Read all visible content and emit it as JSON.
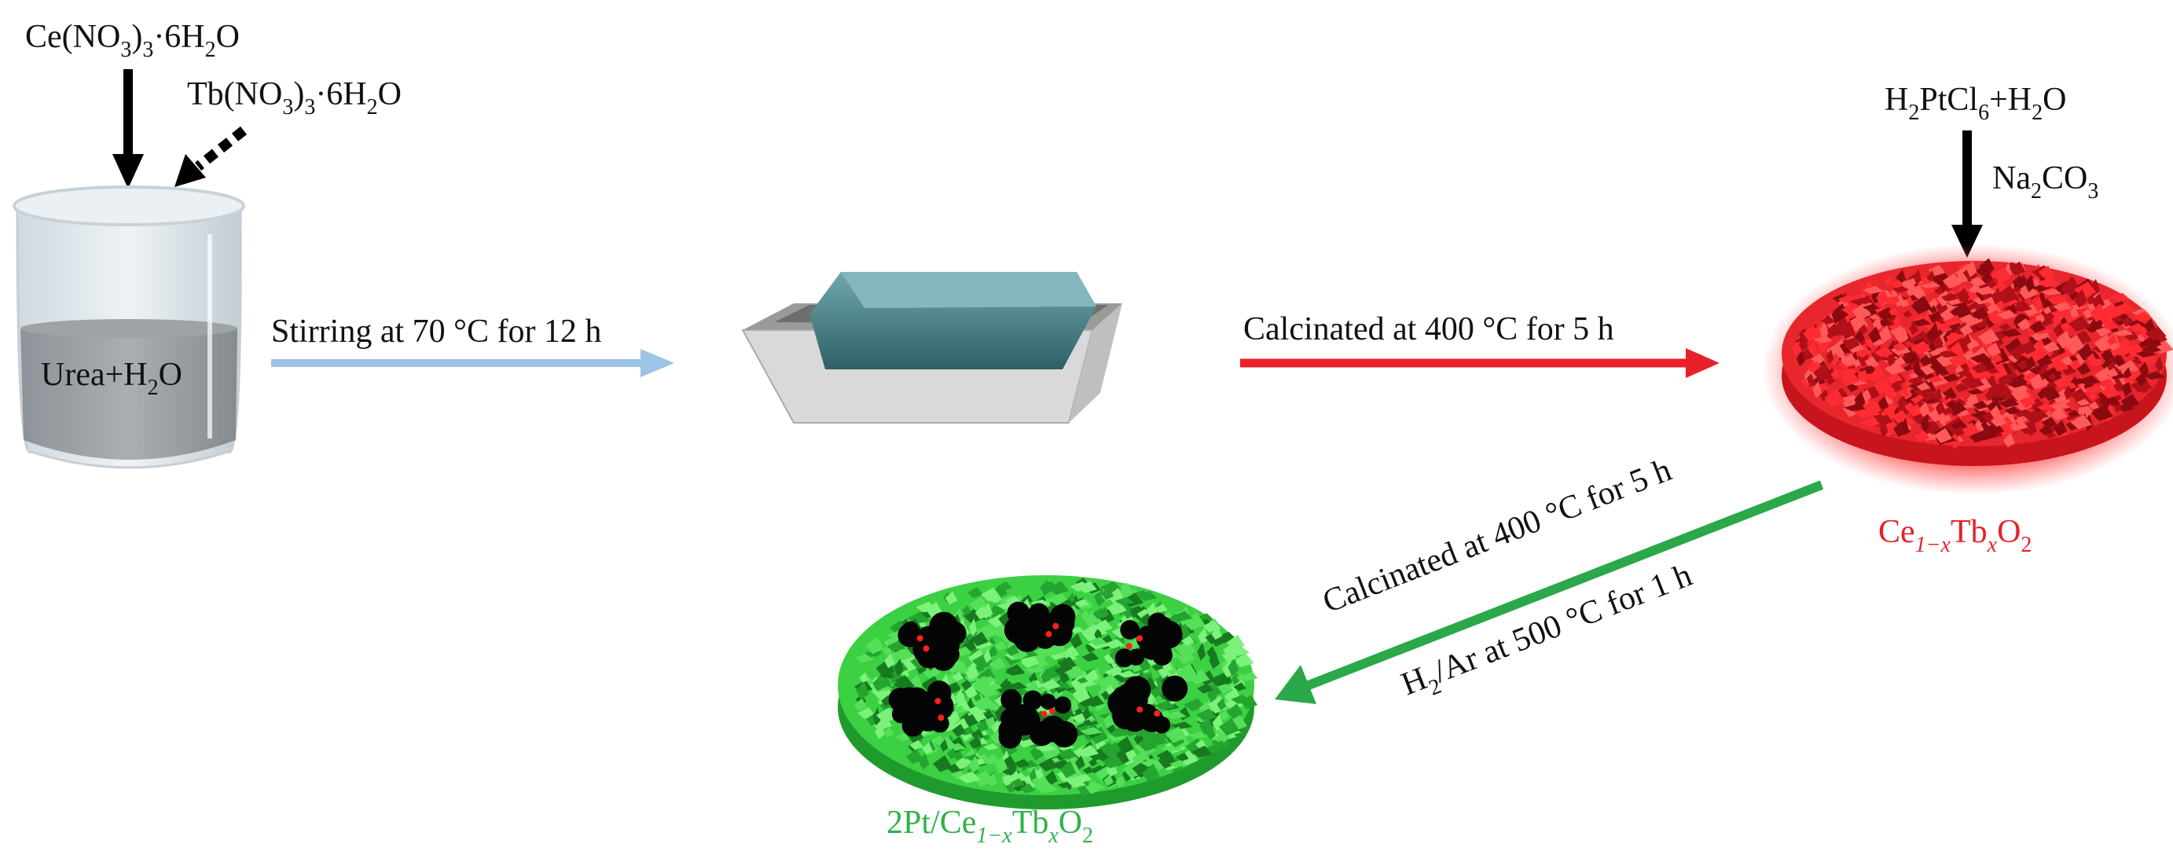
{
  "reagents": {
    "ce_nitrate": [
      "Ce(NO",
      "3",
      ")",
      "3",
      "·6H",
      "2",
      "O"
    ],
    "tb_nitrate": [
      "Tb(NO",
      "3",
      ")",
      "3",
      "·6H",
      "2",
      "O"
    ],
    "beaker_solution": [
      "Urea+H",
      "2",
      "O"
    ],
    "pt_precursor": [
      "H",
      "2",
      "PtCl",
      "6",
      "+H",
      "2",
      "O"
    ],
    "base": [
      "Na",
      "2",
      "CO",
      "3"
    ]
  },
  "steps": {
    "stirring": "Stirring at 70 °C for 12 h",
    "calcination_1": "Calcinated at 400 °C for 5 h",
    "calcination_2": "Calcinated at 400 °C for 5 h",
    "reduction": [
      "H",
      "2",
      "/Ar at 500 °C for 1 h"
    ]
  },
  "products": {
    "support": [
      "Ce",
      "1−x",
      "Tb",
      "x",
      "O",
      "2"
    ],
    "catalyst": [
      "2Pt/Ce",
      "1−x",
      "Tb",
      "x",
      "O",
      "2"
    ]
  },
  "icons": {
    "beaker": "beaker-icon",
    "tray": "crucible-tray-icon",
    "support_disc": "porous-disc-red",
    "catalyst_disc": "porous-disc-green-with-pt"
  },
  "colors": {
    "stirring_arrow": "#9dc3e6",
    "calcination_arrow": "#e8202a",
    "reduction_arrow": "#2aa84a",
    "support_label": "#e8202a",
    "catalyst_label": "#2fb24a",
    "reagent_arrow": "#000000"
  }
}
